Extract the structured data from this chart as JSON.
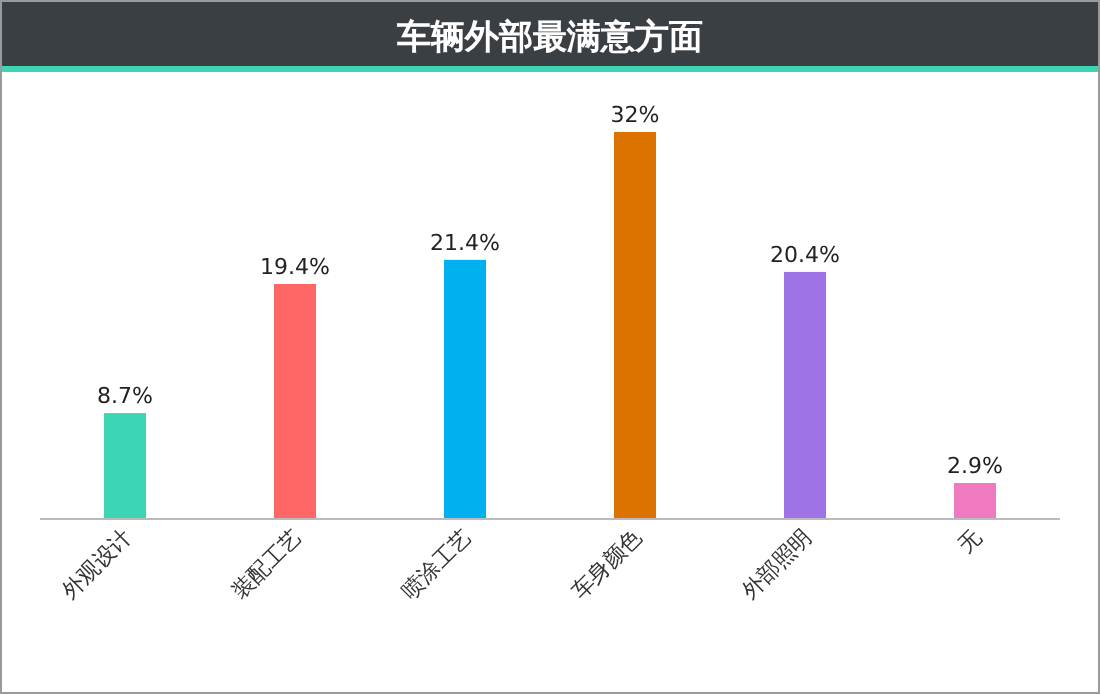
{
  "chart_data": {
    "type": "bar",
    "title": "车辆外部最满意方面",
    "categories": [
      "外观设计",
      "装配工艺",
      "喷涂工艺",
      "车身颜色",
      "外部照明",
      "无"
    ],
    "values": [
      8.7,
      19.4,
      21.4,
      32,
      20.4,
      2.9
    ],
    "value_labels": [
      "8.7%",
      "19.4%",
      "21.4%",
      "32%",
      "20.4%",
      "2.9%"
    ],
    "colors": [
      "#3dd6b5",
      "#ff6666",
      "#00b0ef",
      "#dc7200",
      "#9f73e6",
      "#f07ac0"
    ]
  }
}
